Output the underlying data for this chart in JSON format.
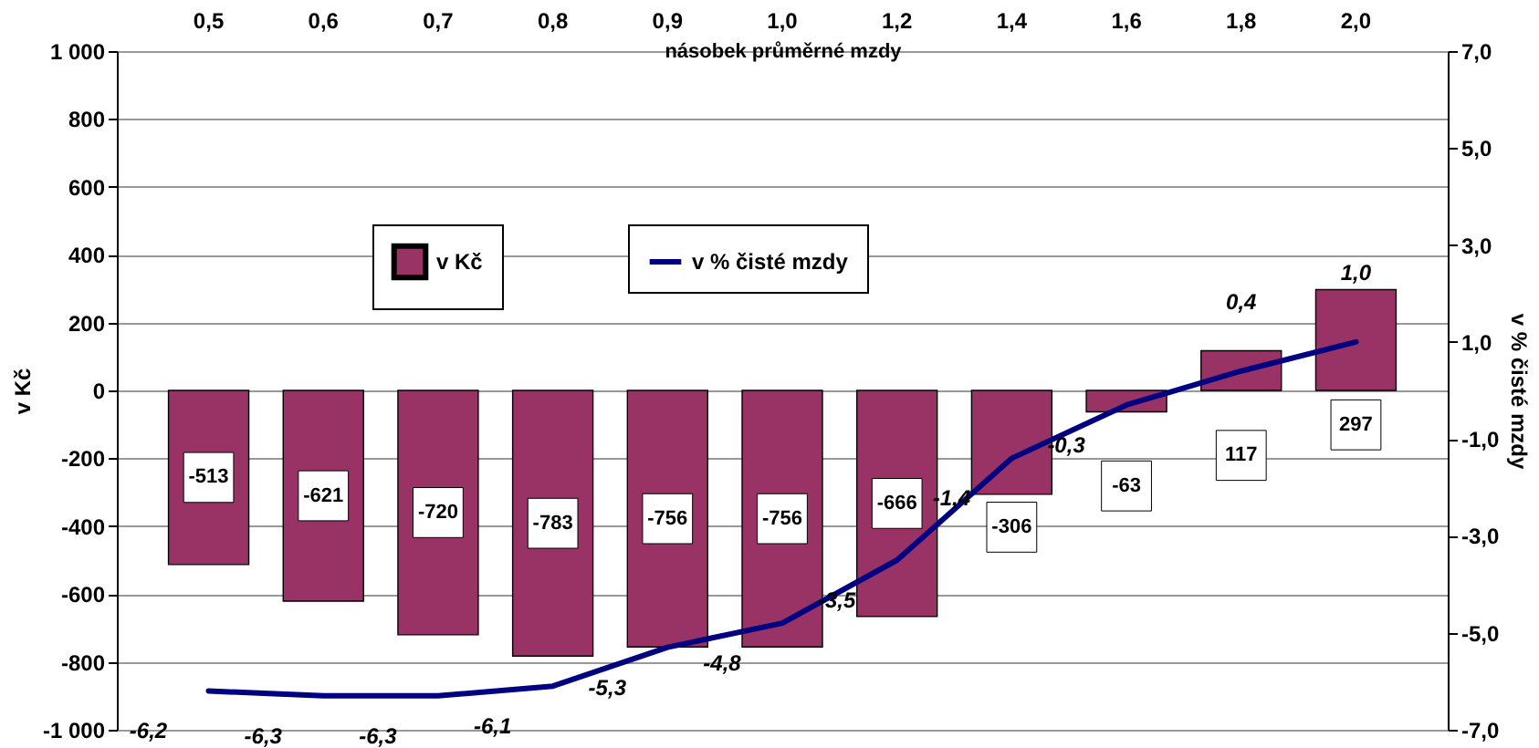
{
  "chart_data": {
    "type": "bar",
    "xlabel": "násobek průměrné mzdy",
    "ylabel": "v Kč",
    "y2label": "v % čisté mzdy",
    "categories": [
      "0,5",
      "0,6",
      "0,7",
      "0,8",
      "0,9",
      "1,0",
      "1,2",
      "1,4",
      "1,6",
      "1,8",
      "2,0"
    ],
    "series": [
      {
        "name": "v Kč",
        "color": "#993366",
        "values": [
          -513,
          -621,
          -720,
          -783,
          -756,
          -756,
          -666,
          -306,
          -63,
          117,
          297
        ],
        "value_labels": [
          "-513",
          "-621",
          "-720",
          "-783",
          "-756",
          "-756",
          "-666",
          "-306",
          "-63",
          "117",
          "297"
        ]
      },
      {
        "name": "v % čisté mzdy",
        "type": "line",
        "axis": "y2",
        "color": "#000080",
        "values": [
          -6.2,
          -6.3,
          -6.3,
          -6.1,
          -5.3,
          -4.8,
          -3.5,
          -1.4,
          -0.3,
          0.4,
          1.0
        ],
        "value_labels": [
          "-6,2",
          "-6,3",
          "-6,3",
          "-6,1",
          "-5,3",
          "-4,8",
          "-3,5",
          "-1,4",
          "-0,3",
          "0,4",
          "1,0"
        ]
      }
    ],
    "ylim": [
      -1000,
      1000
    ],
    "yticks": [
      {
        "value": -1000,
        "label": "-1 000"
      },
      -800,
      -600,
      -400,
      -200,
      0,
      200,
      400,
      600,
      800,
      {
        "value": 1000,
        "label": "1 000"
      }
    ],
    "y2lim": [
      -7,
      7
    ],
    "y2ticks": [
      {
        "value": -7,
        "label": "-7,0"
      },
      {
        "value": -5,
        "label": "-5,0"
      },
      {
        "value": -3,
        "label": "-3,0"
      },
      {
        "value": -1,
        "label": "-1,0"
      },
      {
        "value": 1,
        "label": "1,0"
      },
      {
        "value": 3,
        "label": "3,0"
      },
      {
        "value": 5,
        "label": "5,0"
      },
      {
        "value": 7,
        "label": "7,0"
      }
    ],
    "grid": "y",
    "legend": "top",
    "line_style": "solid",
    "marker": "none"
  }
}
